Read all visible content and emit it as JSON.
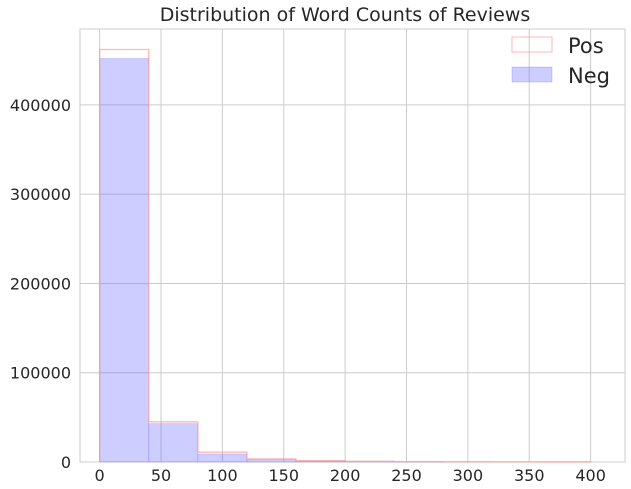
{
  "chart_data": {
    "type": "bar",
    "title": "Distribution of Word Counts of Reviews",
    "xlabel": "",
    "ylabel": "",
    "xlim": [
      -16,
      428
    ],
    "ylim": [
      0,
      485000
    ],
    "xticks": [
      0,
      50,
      100,
      150,
      200,
      250,
      300,
      350,
      400
    ],
    "yticks": [
      0,
      100000,
      200000,
      300000,
      400000
    ],
    "grid": true,
    "legend_position": "top-right",
    "bin_edges": [
      0,
      40,
      80,
      120,
      160,
      200,
      240,
      280,
      320,
      360,
      400
    ],
    "series": [
      {
        "name": "Pos",
        "style": "step",
        "color": "#ff9999",
        "values": [
          462000,
          45000,
          11000,
          3500,
          1500,
          800,
          400,
          200,
          100,
          50
        ]
      },
      {
        "name": "Neg",
        "style": "filled",
        "color": "#6666ff",
        "values": [
          452000,
          43000,
          9000,
          3000,
          1200,
          600,
          300,
          150,
          80,
          40
        ]
      }
    ]
  }
}
